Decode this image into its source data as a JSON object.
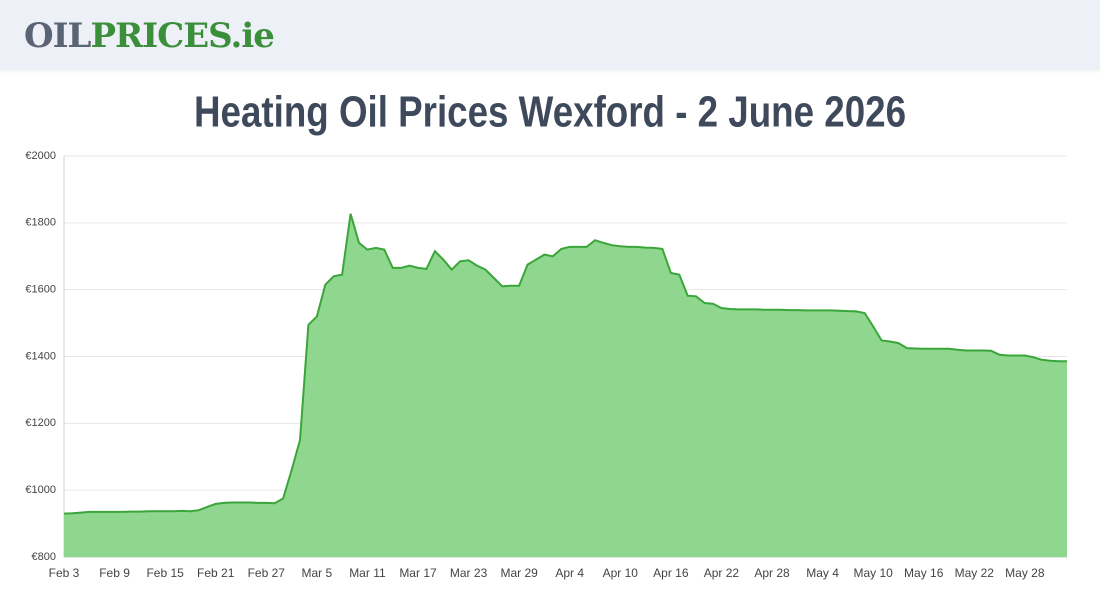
{
  "header": {
    "logo": [
      "OIL",
      "PRICES",
      ".ie"
    ]
  },
  "chart_data": {
    "type": "area",
    "title": "Heating Oil Prices Wexford - 2 June 2026",
    "categories": [
      "Feb 3",
      null,
      null,
      null,
      null,
      null,
      "Feb 9",
      null,
      null,
      null,
      null,
      null,
      "Feb 15",
      null,
      null,
      null,
      null,
      null,
      "Feb 21",
      null,
      null,
      null,
      null,
      null,
      "Feb 27",
      null,
      null,
      null,
      null,
      null,
      "Mar 5",
      null,
      null,
      null,
      null,
      null,
      "Mar 11",
      null,
      null,
      null,
      null,
      null,
      "Mar 17",
      null,
      null,
      null,
      null,
      null,
      "Mar 23",
      null,
      null,
      null,
      null,
      null,
      "Mar 29",
      null,
      null,
      null,
      null,
      null,
      "Apr 4",
      null,
      null,
      null,
      null,
      null,
      "Apr 10",
      null,
      null,
      null,
      null,
      null,
      "Apr 16",
      null,
      null,
      null,
      null,
      null,
      "Apr 22",
      null,
      null,
      null,
      null,
      null,
      "Apr 28",
      null,
      null,
      null,
      null,
      null,
      "May 4",
      null,
      null,
      null,
      null,
      null,
      "May 10",
      null,
      null,
      null,
      null,
      null,
      "May 16",
      null,
      null,
      null,
      null,
      null,
      "May 22",
      null,
      null,
      null,
      null,
      null,
      "May 28",
      null,
      null,
      null,
      null,
      null
    ],
    "values": [
      930,
      931,
      933,
      935,
      935,
      935,
      935,
      935,
      936,
      936,
      937,
      937,
      937,
      937,
      938,
      937,
      940,
      950,
      959,
      962,
      963,
      963,
      963,
      962,
      962,
      961,
      975,
      1060,
      1150,
      1495,
      1520,
      1615,
      1640,
      1645,
      1827,
      1740,
      1720,
      1725,
      1720,
      1665,
      1665,
      1672,
      1665,
      1662,
      1715,
      1690,
      1660,
      1685,
      1688,
      1672,
      1660,
      1635,
      1610,
      1612,
      1612,
      1675,
      1690,
      1705,
      1700,
      1722,
      1728,
      1728,
      1728,
      1748,
      1740,
      1733,
      1730,
      1728,
      1728,
      1726,
      1725,
      1722,
      1650,
      1645,
      1582,
      1580,
      1560,
      1558,
      1545,
      1542,
      1541,
      1541,
      1541,
      1540,
      1540,
      1540,
      1539,
      1539,
      1538,
      1538,
      1538,
      1538,
      1537,
      1536,
      1535,
      1530,
      1490,
      1448,
      1445,
      1440,
      1425,
      1424,
      1423,
      1423,
      1423,
      1423,
      1420,
      1418,
      1418,
      1418,
      1417,
      1405,
      1403,
      1403,
      1403,
      1398,
      1390,
      1387,
      1386,
      1386
    ],
    "color": "#3aa63a",
    "ylim": [
      800,
      2000
    ],
    "yticks": [
      {
        "value": 800,
        "label": "€800"
      },
      {
        "value": 1000,
        "label": "€1000"
      },
      {
        "value": 1200,
        "label": "€1200"
      },
      {
        "value": 1400,
        "label": "€1400"
      },
      {
        "value": 1600,
        "label": "€1600"
      },
      {
        "value": 1800,
        "label": "€1800"
      },
      {
        "value": 2000,
        "label": "€2000"
      }
    ],
    "grid": true
  }
}
